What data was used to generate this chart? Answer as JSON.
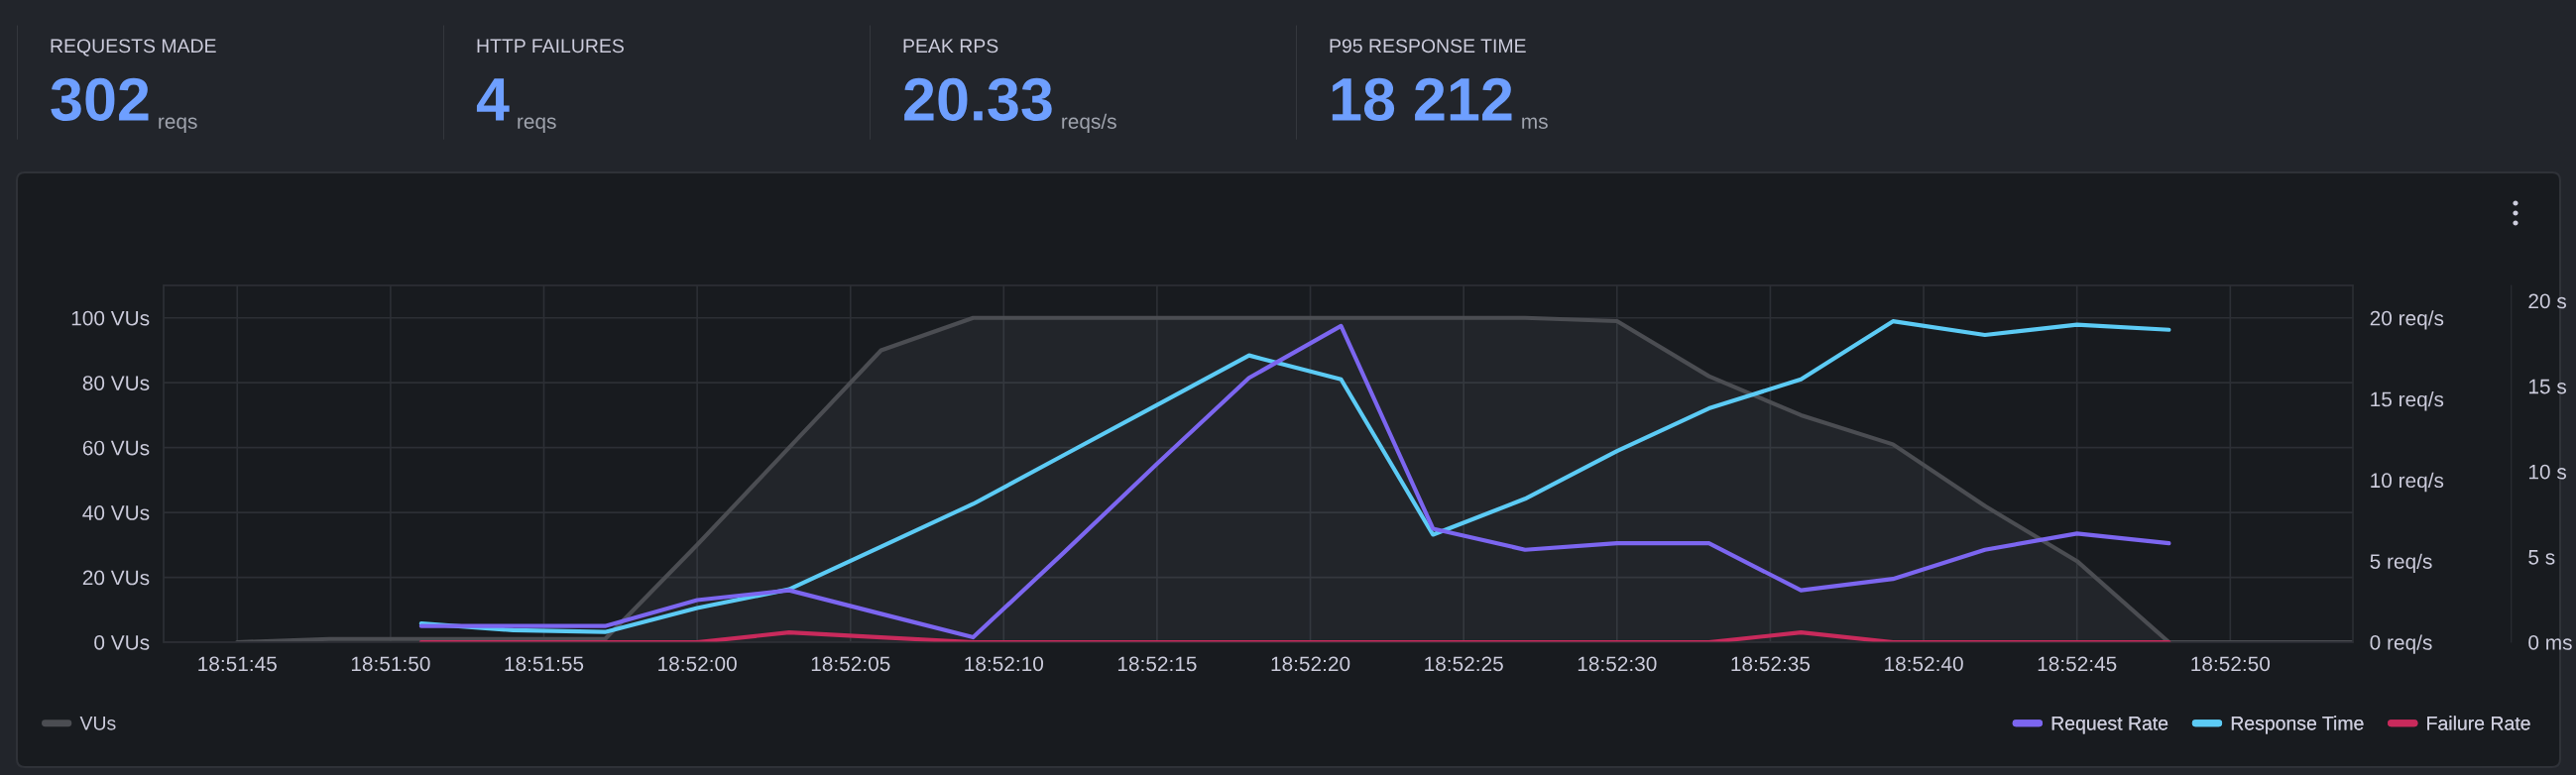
{
  "chart_data": [
    {
      "type": "other",
      "title": "REQUESTS MADE",
      "annotations": [
        "302",
        "reqs"
      ]
    },
    {
      "type": "other",
      "title": "HTTP FAILURES",
      "annotations": [
        "4",
        "reqs"
      ]
    },
    {
      "type": "other",
      "title": "PEAK RPS",
      "annotations": [
        "20.33",
        "reqs/s"
      ]
    },
    {
      "type": "other",
      "title": "P95 RESPONSE TIME",
      "annotations": [
        "18 212",
        "ms"
      ]
    },
    {
      "type": "line",
      "x": [
        18.8625,
        18.863333,
        18.864167,
        18.865,
        18.865833,
        18.866667,
        18.8675,
        18.868333,
        18.869167,
        18.87,
        18.870833,
        18.871667,
        18.8725,
        18.873333,
        18.874167,
        18.875,
        18.875833,
        18.876667,
        18.8775,
        18.878333,
        18.879167,
        18.88,
        18.880833,
        18.881667
      ],
      "series": [
        {
          "name": "VUs",
          "type": "area",
          "axis": "y",
          "color": "#4b4d52",
          "values": [
            0,
            1,
            1,
            1,
            1,
            30,
            60,
            90,
            100,
            100,
            100,
            100,
            100,
            100,
            100,
            99,
            82,
            70,
            61,
            42,
            25,
            0,
            0,
            0
          ]
        },
        {
          "name": "Request Rate",
          "axis": "y2",
          "color": "#7c66f0",
          "values": [
            null,
            null,
            1.0,
            1.0,
            1.0,
            2.6,
            3.2,
            1.75,
            0.3,
            5.6,
            11.0,
            16.3,
            19.5,
            7.0,
            5.7,
            6.1,
            6.1,
            3.2,
            3.9,
            5.7,
            6.7,
            6.1,
            null,
            null
          ]
        },
        {
          "name": "Response Time",
          "axis": "y3",
          "color": "#5ccbf5",
          "values": [
            null,
            null,
            1.1,
            0.7,
            0.6,
            2.0,
            3.1,
            5.6,
            8.1,
            11.0,
            13.9,
            16.8,
            15.4,
            6.3,
            8.4,
            11.2,
            13.7,
            15.4,
            18.8,
            18.0,
            18.6,
            18.3,
            null,
            null
          ]
        },
        {
          "name": "Failure Rate",
          "axis": "y2",
          "color": "#c92a5c",
          "values": [
            null,
            null,
            0,
            0,
            0,
            0,
            0.6,
            0.3,
            0,
            0,
            0,
            0,
            0,
            0,
            0,
            0,
            0,
            0.6,
            0,
            0,
            0,
            0,
            null,
            null
          ]
        }
      ],
      "xlim": [
        18.861833,
        18.881667
      ],
      "xticks": [
        {
          "value": 18.8625,
          "label": "18:51:45"
        },
        {
          "value": 18.863889,
          "label": "18:51:50"
        },
        {
          "value": 18.865278,
          "label": "18:51:55"
        },
        {
          "value": 18.866667,
          "label": "18:52:00"
        },
        {
          "value": 18.868056,
          "label": "18:52:05"
        },
        {
          "value": 18.869444,
          "label": "18:52:10"
        },
        {
          "value": 18.870833,
          "label": "18:52:15"
        },
        {
          "value": 18.872222,
          "label": "18:52:20"
        },
        {
          "value": 18.873611,
          "label": "18:52:25"
        },
        {
          "value": 18.875,
          "label": "18:52:30"
        },
        {
          "value": 18.876389,
          "label": "18:52:35"
        },
        {
          "value": 18.877778,
          "label": "18:52:40"
        },
        {
          "value": 18.879167,
          "label": "18:52:45"
        },
        {
          "value": 18.880556,
          "label": "18:52:50"
        }
      ],
      "ylim": [
        0,
        110
      ],
      "yticks": [
        {
          "value": 0,
          "label": "0 VUs"
        },
        {
          "value": 20,
          "label": "20 VUs"
        },
        {
          "value": 40,
          "label": "40 VUs"
        },
        {
          "value": 60,
          "label": "60 VUs"
        },
        {
          "value": 80,
          "label": "80 VUs"
        },
        {
          "value": 100,
          "label": "100 VUs"
        }
      ],
      "y2lim": [
        0,
        22
      ],
      "y2ticks": [
        {
          "value": 0,
          "label": "0 req/s"
        },
        {
          "value": 5,
          "label": "5 req/s"
        },
        {
          "value": 10,
          "label": "10 req/s"
        },
        {
          "value": 15,
          "label": "15 req/s"
        },
        {
          "value": 20,
          "label": "20 req/s"
        }
      ],
      "y3lim": [
        0,
        20.9
      ],
      "y3ticks": [
        {
          "value": 0,
          "label": "0 ms"
        },
        {
          "value": 5,
          "label": "5 s"
        },
        {
          "value": 10,
          "label": "10 s"
        },
        {
          "value": 15,
          "label": "15 s"
        },
        {
          "value": 20,
          "label": "20 s"
        }
      ],
      "grid": true,
      "legend": "bottom"
    }
  ]
}
